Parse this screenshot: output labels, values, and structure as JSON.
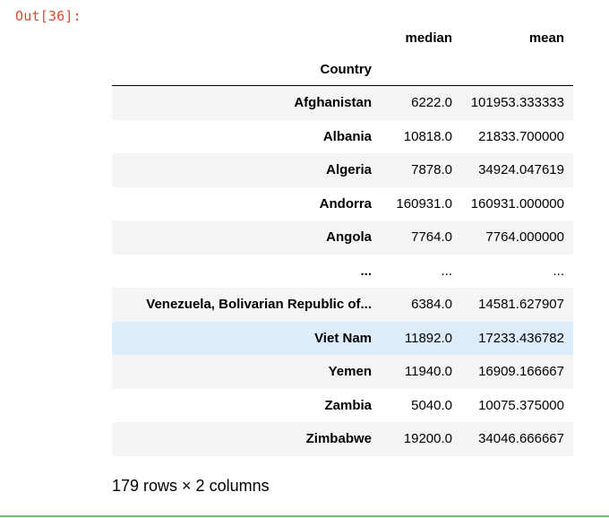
{
  "prompt": "Out[36]:",
  "table": {
    "columns": [
      "median",
      "mean"
    ],
    "index_name": "Country",
    "rows": [
      {
        "country": "Afghanistan",
        "median": "6222.0",
        "mean": "101953.333333"
      },
      {
        "country": "Albania",
        "median": "10818.0",
        "mean": "21833.700000"
      },
      {
        "country": "Algeria",
        "median": "7878.0",
        "mean": "34924.047619"
      },
      {
        "country": "Andorra",
        "median": "160931.0",
        "mean": "160931.000000"
      },
      {
        "country": "Angola",
        "median": "7764.0",
        "mean": "7764.000000"
      },
      {
        "country": "...",
        "median": "...",
        "mean": "..."
      },
      {
        "country": "Venezuela, Bolivarian Republic of...",
        "median": "6384.0",
        "mean": "14581.627907"
      },
      {
        "country": "Viet Nam",
        "median": "11892.0",
        "mean": "17233.436782"
      },
      {
        "country": "Yemen",
        "median": "11940.0",
        "mean": "16909.166667"
      },
      {
        "country": "Zambia",
        "median": "5040.0",
        "mean": "10075.375000"
      },
      {
        "country": "Zimbabwe",
        "median": "19200.0",
        "mean": "34046.666667"
      }
    ]
  },
  "summary": "179 rows × 2 columns",
  "colors": {
    "prompt": "#d84a2b",
    "stripe": "#f5f5f5",
    "hover_row": "#deedfb",
    "cell_border": "#6cc26e"
  }
}
